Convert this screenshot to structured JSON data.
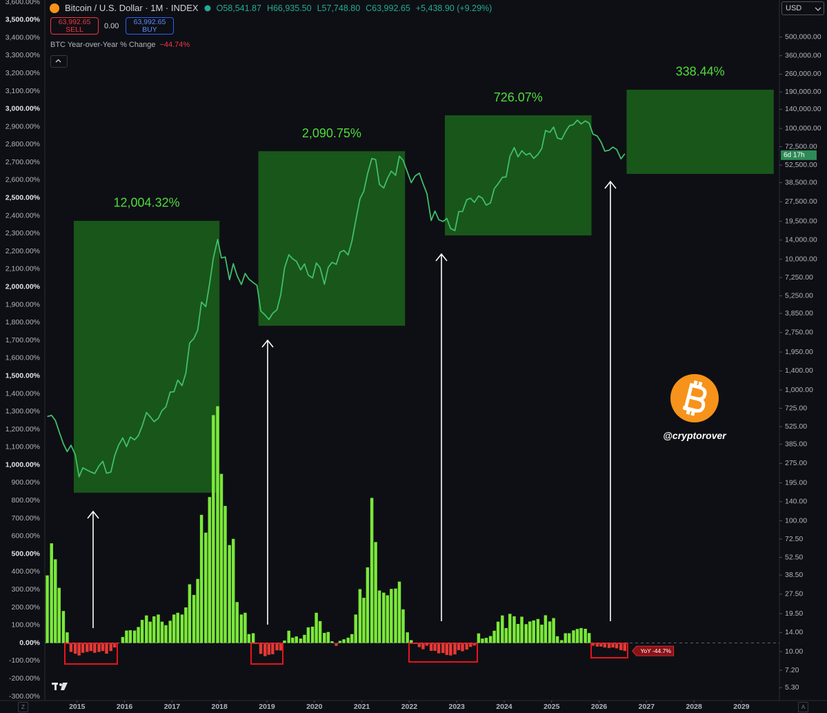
{
  "chart_data": {
    "type": "combo",
    "ohlc": [
      "O58,541.87",
      "H66,935.50",
      "L57,748.80",
      "C63,992.65",
      "+5,438.90 (+9.29%)"
    ],
    "trading": {
      "sell_price": "63,992.65",
      "sell": "SELL",
      "spread": "0.00",
      "buy_price": "63,992.65",
      "buy": "BUY"
    },
    "currency": "USD",
    "countdown": "6d 17h",
    "watermark": "@cryptorover",
    "axis_buttons": [
      "Z",
      "A"
    ],
    "x": [
      2014.33,
      2014.42,
      2014.5,
      2014.58,
      2014.67,
      2014.75,
      2014.83,
      2014.92,
      2015,
      2015.08,
      2015.17,
      2015.25,
      2015.33,
      2015.42,
      2015.5,
      2015.58,
      2015.67,
      2015.75,
      2015.83,
      2015.92,
      2016,
      2016.08,
      2016.17,
      2016.25,
      2016.33,
      2016.42,
      2016.5,
      2016.58,
      2016.67,
      2016.75,
      2016.83,
      2016.92,
      2017,
      2017.08,
      2017.17,
      2017.25,
      2017.33,
      2017.42,
      2017.5,
      2017.58,
      2017.67,
      2017.75,
      2017.83,
      2017.92,
      2018,
      2018.08,
      2018.17,
      2018.25,
      2018.33,
      2018.42,
      2018.5,
      2018.58,
      2018.67,
      2018.75,
      2018.83,
      2018.92,
      2019,
      2019.08,
      2019.17,
      2019.25,
      2019.33,
      2019.42,
      2019.5,
      2019.58,
      2019.67,
      2019.75,
      2019.83,
      2019.92,
      2020,
      2020.08,
      2020.17,
      2020.25,
      2020.33,
      2020.42,
      2020.5,
      2020.58,
      2020.67,
      2020.75,
      2020.83,
      2020.92,
      2021,
      2021.08,
      2021.17,
      2021.25,
      2021.33,
      2021.42,
      2021.5,
      2021.58,
      2021.67,
      2021.75,
      2021.83,
      2021.92,
      2022,
      2022.08,
      2022.17,
      2022.25,
      2022.33,
      2022.42,
      2022.5,
      2022.58,
      2022.67,
      2022.75,
      2022.83,
      2022.92,
      2023,
      2023.08,
      2023.17,
      2023.25,
      2023.33,
      2023.42,
      2023.5,
      2023.58,
      2023.67,
      2023.75,
      2023.83,
      2023.92,
      2024,
      2024.08,
      2024.17,
      2024.25,
      2024.33,
      2024.42,
      2024.5,
      2024.58,
      2024.67,
      2024.75,
      2024.83,
      2024.92,
      2025,
      2025.08,
      2025.17,
      2025.25,
      2025.33,
      2025.42,
      2025.5,
      2025.58,
      2025.67,
      2025.75,
      2025.83,
      2025.92,
      2026,
      2026.08,
      2026.17,
      2026.25,
      2026.33,
      2026.42,
      2026.5
    ],
    "series": [
      {
        "name": "BTC Year-over-Year % Change",
        "type": "bar",
        "color": "#7be83a",
        "negative_color": "#e53935",
        "legend_value": "−44.74%",
        "tag_label": "YoY -44.7%",
        "values": [
          380,
          560,
          470,
          310,
          180,
          60,
          -50,
          -60,
          -70,
          -55,
          -50,
          -45,
          -55,
          -50,
          -45,
          -60,
          -45,
          -25,
          -1,
          34,
          70,
          72,
          70,
          90,
          130,
          155,
          120,
          150,
          160,
          120,
          100,
          125,
          160,
          170,
          160,
          200,
          330,
          270,
          360,
          720,
          620,
          820,
          1280,
          1330,
          950,
          770,
          550,
          585,
          230,
          160,
          170,
          50,
          55,
          -2,
          -61,
          -74,
          -66,
          -63,
          -41,
          -42,
          14,
          69,
          30,
          37,
          25,
          46,
          88,
          92,
          170,
          123,
          57,
          62,
          10,
          -16,
          12,
          21,
          30,
          50,
          160,
          303,
          254,
          425,
          815,
          567,
          295,
          283,
          268,
          304,
          306,
          345,
          189,
          60,
          16,
          -4,
          -23,
          -35,
          -15,
          -44,
          -44,
          -58,
          -56,
          -67,
          -70,
          -64,
          -40,
          -46,
          -37,
          -22,
          -14,
          54,
          25,
          29,
          39,
          69,
          120,
          155,
          84,
          164,
          150,
          107,
          148,
          106,
          121,
          127,
          135,
          103,
          156,
          121,
          140,
          38,
          16,
          55,
          55,
          71,
          79,
          84,
          80,
          56,
          -15,
          -20,
          -20,
          -25,
          -28,
          -25,
          -30,
          -40,
          -44.74
        ]
      },
      {
        "name": "Bitcoin / U.S. Dollar · 1M · INDEX",
        "type": "line",
        "axis": "y2",
        "color": "#3fbf6a",
        "values": [
          627,
          640,
          586,
          480,
          387,
          338,
          378,
          320,
          217,
          254,
          244,
          236,
          230,
          263,
          285,
          231,
          236,
          314,
          377,
          430,
          369,
          437,
          416,
          448,
          531,
          673,
          624,
          573,
          608,
          698,
          742,
          964,
          970,
          1190,
          1080,
          1348,
          2286,
          2480,
          2875,
          4703,
          4338,
          6468,
          10233,
          14156,
          10221,
          10397,
          6973,
          9240,
          7494,
          6404,
          7780,
          7037,
          6625,
          6317,
          4017,
          3742,
          3457,
          3854,
          4105,
          5350,
          8574,
          10817,
          10085,
          9630,
          8293,
          9199,
          7569,
          7193,
          9350,
          8599,
          6438,
          8658,
          9461,
          9138,
          11323,
          11681,
          10784,
          13781,
          19713,
          28990,
          33114,
          45137,
          58918,
          57750,
          37332,
          35040,
          41626,
          47166,
          43790,
          61318,
          57005,
          46306,
          38483,
          43193,
          45538,
          37714,
          31792,
          19784,
          23337,
          20050,
          19423,
          20495,
          17168,
          16548,
          23139,
          23147,
          28478,
          29268,
          27219,
          30477,
          29230,
          25931,
          26967,
          34667,
          37712,
          42265,
          42582,
          61198,
          71333,
          60637,
          67491,
          62678,
          64619,
          58969,
          63329,
          70215,
          96449,
          93429,
          102405,
          84374,
          82548,
          94207,
          104638,
          107135,
          115758,
          108236,
          114056,
          109556,
          90394,
          87500,
          78600,
          67000,
          68200,
          72000,
          69000,
          58542,
          63992.65
        ]
      }
    ],
    "annotations": [
      {
        "label": "12,004.32%",
        "x": [
          2014.93,
          2018.0
        ],
        "y": [
          164,
          19650
        ],
        "color": "#1b5e1b",
        "text_color": "#4fdc3c"
      },
      {
        "label": "2,090.75%",
        "x": [
          2018.82,
          2021.91
        ],
        "y": [
          3100,
          67000
        ],
        "color": "#1b5e1b",
        "text_color": "#4fdc3c"
      },
      {
        "label": "726.07%",
        "x": [
          2022.75,
          2025.84
        ],
        "y": [
          15200,
          126000
        ],
        "color": "#1b5e1b",
        "text_color": "#4fdc3c"
      },
      {
        "label": "338.44%",
        "x": [
          2026.58,
          2029.68
        ],
        "y": [
          44900,
          197700
        ],
        "color": "#1b5e1b",
        "text_color": "#4fdc3c"
      }
    ],
    "xlim": [
      2014.32,
      2029.8
    ],
    "xticks": [
      2015,
      2016,
      2017,
      2018,
      2019,
      2020,
      2021,
      2022,
      2023,
      2024,
      2025,
      2026,
      2027,
      2028,
      2029
    ],
    "ylim": [
      -300,
      3600
    ],
    "yticks": [
      {
        "value": -300,
        "label": "-300.00%"
      },
      {
        "value": -200,
        "label": "-200.00%"
      },
      {
        "value": -100,
        "label": "-100.00%"
      },
      {
        "value": 0,
        "label": "0.00%"
      },
      {
        "value": 100,
        "label": "100.00%"
      },
      {
        "value": 200,
        "label": "200.00%"
      },
      {
        "value": 300,
        "label": "300.00%"
      },
      {
        "value": 400,
        "label": "400.00%"
      },
      {
        "value": 500,
        "label": "500.00%"
      },
      {
        "value": 600,
        "label": "600.00%"
      },
      {
        "value": 700,
        "label": "700.00%"
      },
      {
        "value": 800,
        "label": "800.00%"
      },
      {
        "value": 900,
        "label": "900.00%"
      },
      {
        "value": 1000,
        "label": "1,000.00%"
      },
      {
        "value": 1100,
        "label": "1,100.00%"
      },
      {
        "value": 1200,
        "label": "1,200.00%"
      },
      {
        "value": 1300,
        "label": "1,300.00%"
      },
      {
        "value": 1400,
        "label": "1,400.00%"
      },
      {
        "value": 1500,
        "label": "1,500.00%"
      },
      {
        "value": 1600,
        "label": "1,600.00%"
      },
      {
        "value": 1700,
        "label": "1,700.00%"
      },
      {
        "value": 1800,
        "label": "1,800.00%"
      },
      {
        "value": 1900,
        "label": "1,900.00%"
      },
      {
        "value": 2000,
        "label": "2,000.00%"
      },
      {
        "value": 2100,
        "label": "2,100.00%"
      },
      {
        "value": 2200,
        "label": "2,200.00%"
      },
      {
        "value": 2300,
        "label": "2,300.00%"
      },
      {
        "value": 2400,
        "label": "2,400.00%"
      },
      {
        "value": 2500,
        "label": "2,500.00%"
      },
      {
        "value": 2600,
        "label": "2,600.00%"
      },
      {
        "value": 2700,
        "label": "2,700.00%"
      },
      {
        "value": 2800,
        "label": "2,800.00%"
      },
      {
        "value": 2900,
        "label": "2,900.00%"
      },
      {
        "value": 3000,
        "label": "3,000.00%"
      },
      {
        "value": 3100,
        "label": "3,100.00%"
      },
      {
        "value": 3200,
        "label": "3,200.00%"
      },
      {
        "value": 3300,
        "label": "3,300.00%"
      },
      {
        "value": 3400,
        "label": "3,400.00%"
      },
      {
        "value": 3500,
        "label": "3,500.00%"
      },
      {
        "value": 3600,
        "label": "3,600.00%"
      }
    ],
    "y2lim": [
      4.54,
      925000
    ],
    "y2log": true,
    "y2ticks": [
      {
        "value": 5.3,
        "label": "5.30"
      },
      {
        "value": 7.2,
        "label": "7.20"
      },
      {
        "value": 10,
        "label": "10.00"
      },
      {
        "value": 14,
        "label": "14.00"
      },
      {
        "value": 19.5,
        "label": "19.50"
      },
      {
        "value": 27.5,
        "label": "27.50"
      },
      {
        "value": 38.5,
        "label": "38.50"
      },
      {
        "value": 52.5,
        "label": "52.50"
      },
      {
        "value": 72.5,
        "label": "72.50"
      },
      {
        "value": 100,
        "label": "100.00"
      },
      {
        "value": 140,
        "label": "140.00"
      },
      {
        "value": 195,
        "label": "195.00"
      },
      {
        "value": 275,
        "label": "275.00"
      },
      {
        "value": 385,
        "label": "385.00"
      },
      {
        "value": 525,
        "label": "525.00"
      },
      {
        "value": 725,
        "label": "725.00"
      },
      {
        "value": 1000,
        "label": "1,000.00"
      },
      {
        "value": 1400,
        "label": "1,400.00"
      },
      {
        "value": 1950,
        "label": "1,950.00"
      },
      {
        "value": 2750,
        "label": "2,750.00"
      },
      {
        "value": 3850,
        "label": "3,850.00"
      },
      {
        "value": 5250,
        "label": "5,250.00"
      },
      {
        "value": 7250,
        "label": "7,250.00"
      },
      {
        "value": 10000,
        "label": "10,000.00"
      },
      {
        "value": 14000,
        "label": "14,000.00"
      },
      {
        "value": 19500,
        "label": "19,500.00"
      },
      {
        "value": 27500,
        "label": "27,500.00"
      },
      {
        "value": 38500,
        "label": "38,500.00"
      },
      {
        "value": 52500,
        "label": "52,500.00"
      },
      {
        "value": 72500,
        "label": "72,500.00"
      },
      {
        "value": 100000,
        "label": "100,000.00"
      },
      {
        "value": 140000,
        "label": "140,000.00"
      },
      {
        "value": 190000,
        "label": "190,000.00"
      },
      {
        "value": 260000,
        "label": "260,000.00"
      },
      {
        "value": 360000,
        "label": "360,000.00"
      },
      {
        "value": 500000,
        "label": "500,000.00"
      }
    ],
    "grid": false
  }
}
